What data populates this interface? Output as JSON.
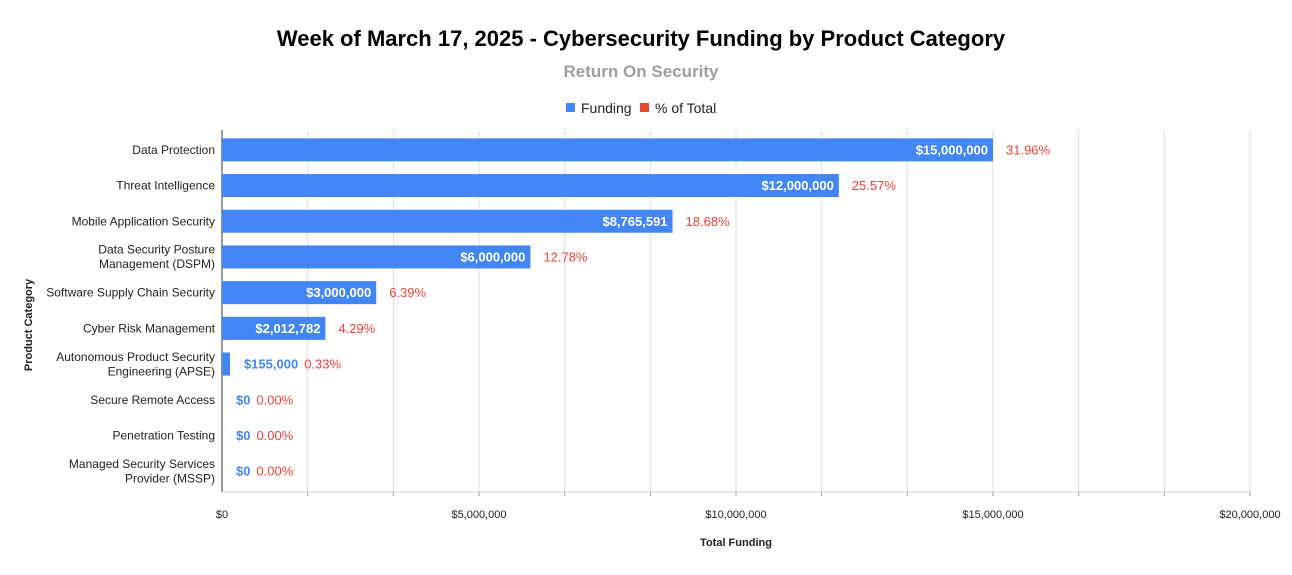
{
  "chart_data": {
    "type": "bar",
    "orientation": "horizontal",
    "title": "Week of March 17, 2025 - Cybersecurity Funding by Product Category",
    "subtitle": "Return On Security",
    "xlabel": "Total Funding",
    "ylabel": "Product Category",
    "xlim": [
      0,
      20000000
    ],
    "x_ticks": [
      0,
      5000000,
      10000000,
      15000000,
      20000000
    ],
    "x_tick_labels": [
      "$0",
      "$5,000,000",
      "$10,000,000",
      "$15,000,000",
      "$20,000,000"
    ],
    "grid": true,
    "legend_position": "top-center",
    "legend": [
      {
        "name": "Funding",
        "color": "#4285f4"
      },
      {
        "name": "% of Total",
        "color": "#ea4335"
      }
    ],
    "categories": [
      [
        "Data Protection"
      ],
      [
        "Threat Intelligence"
      ],
      [
        "Mobile Application Security"
      ],
      [
        "Data Security Posture",
        "Management (DSPM)"
      ],
      [
        "Software Supply Chain Security"
      ],
      [
        "Cyber Risk Management"
      ],
      [
        "Autonomous Product Security",
        "Engineering (APSE)"
      ],
      [
        "Secure Remote Access"
      ],
      [
        "Penetration Testing"
      ],
      [
        "Managed Security Services",
        "Provider (MSSP)"
      ]
    ],
    "series": [
      {
        "name": "Funding",
        "values": [
          15000000,
          12000000,
          8765591,
          6000000,
          3000000,
          2012782,
          155000,
          0,
          0,
          0
        ],
        "labels": [
          "$15,000,000",
          "$12,000,000",
          "$8,765,591",
          "$6,000,000",
          "$3,000,000",
          "$2,012,782",
          "$155,000",
          "$0",
          "$0",
          "$0"
        ]
      },
      {
        "name": "% of Total",
        "values": [
          31.96,
          25.57,
          18.68,
          12.78,
          6.39,
          4.29,
          0.33,
          0.0,
          0.0,
          0.0
        ],
        "labels": [
          "31.96%",
          "25.57%",
          "18.68%",
          "12.78%",
          "6.39%",
          "4.29%",
          "0.33%",
          "0.00%",
          "0.00%",
          "0.00%"
        ]
      }
    ]
  }
}
